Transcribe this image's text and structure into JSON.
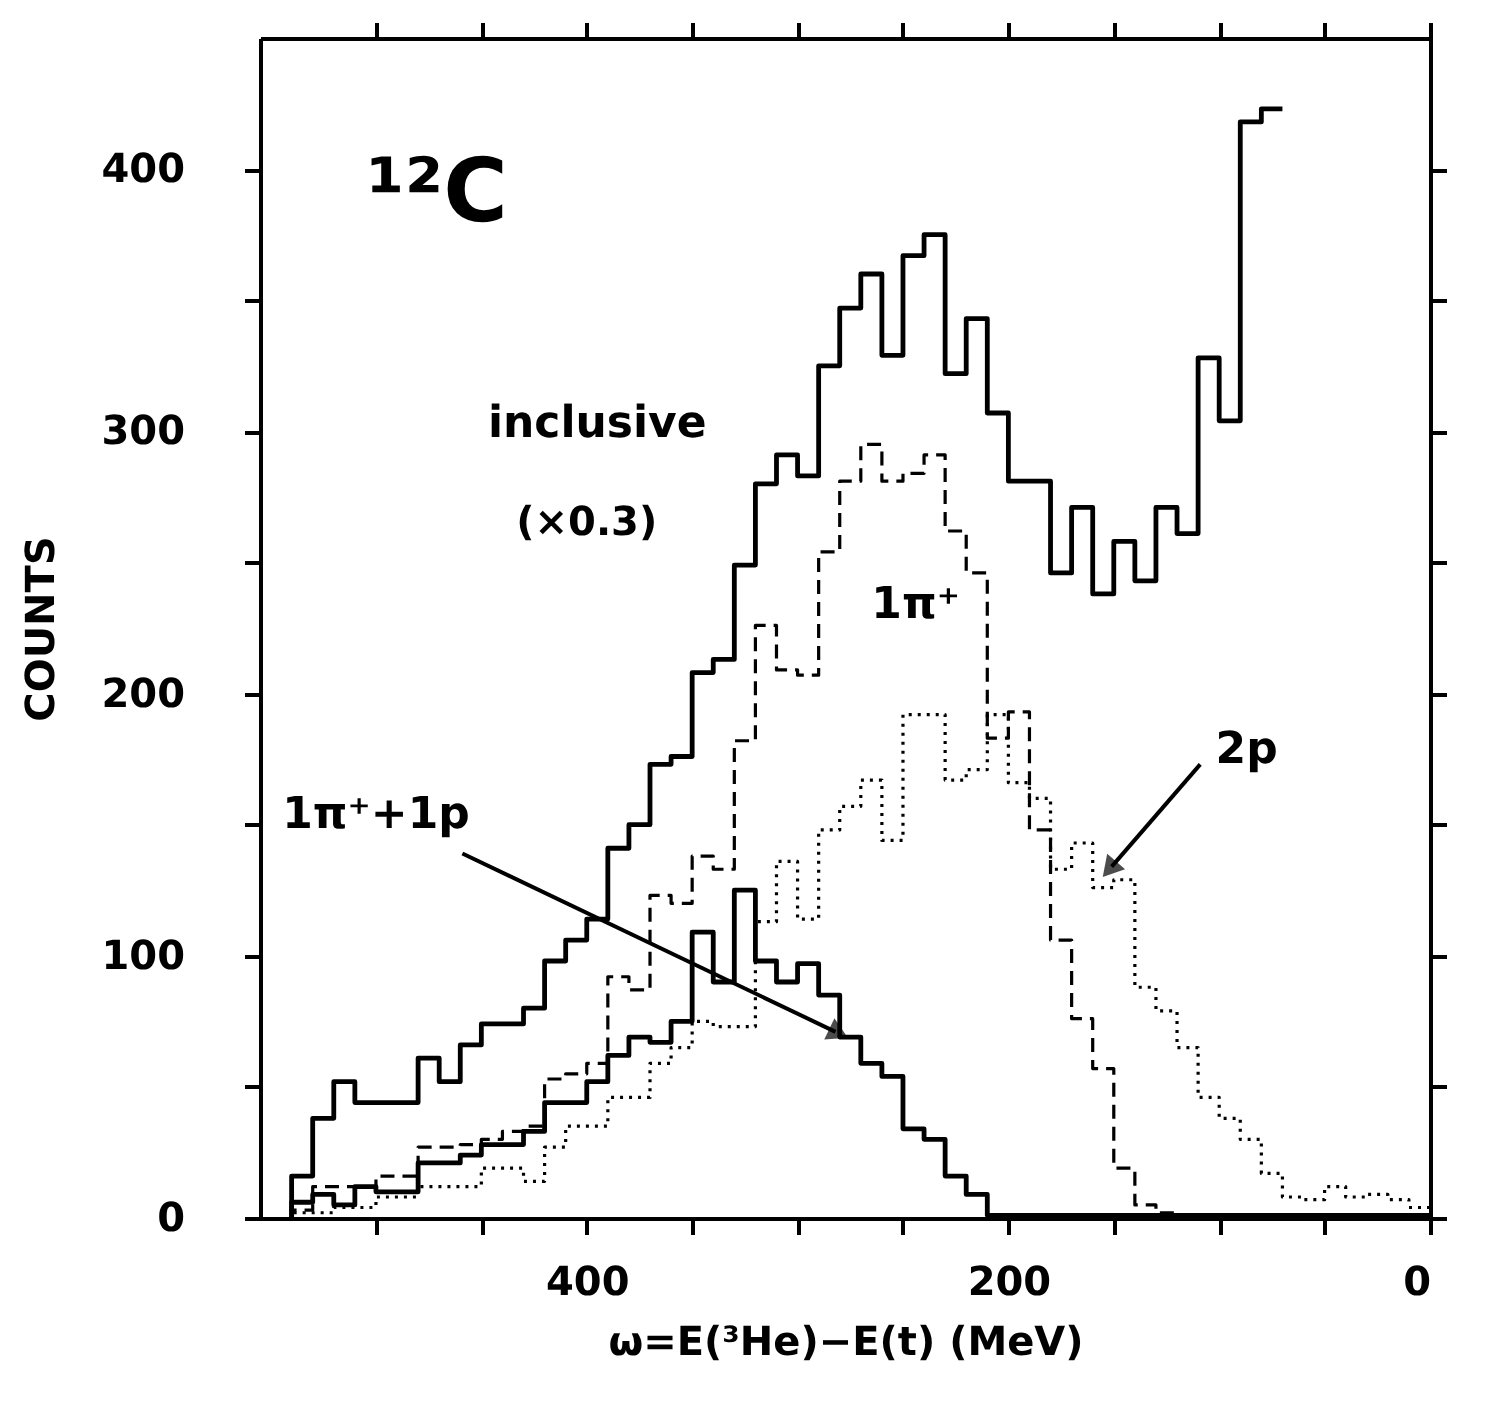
{
  "chart_data": {
    "type": "step",
    "xlabel": "ω=E(³He)−E(t) (MeV)",
    "ylabel": "COUNTS",
    "annotations": [
      "¹²C",
      "(×0.3)"
    ],
    "x": [
      0,
      10,
      20,
      30,
      40,
      50,
      60,
      70,
      80,
      90,
      100,
      110,
      120,
      130,
      140,
      150,
      160,
      170,
      180,
      190,
      200,
      210,
      220,
      230,
      240,
      250,
      260,
      270,
      280,
      290,
      300,
      310,
      320,
      330,
      340,
      350,
      360,
      370,
      380,
      390,
      400,
      410,
      420,
      430,
      440,
      450,
      460,
      470,
      480,
      490,
      500,
      510,
      520,
      530,
      540
    ],
    "series": [
      {
        "name": "inclusive",
        "color": "#000000",
        "line_style": "solid",
        "values": [
          null,
          null,
          null,
          null,
          null,
          null,
          null,
          423,
          418,
          304,
          328,
          261,
          271,
          243,
          258,
          238,
          271,
          246,
          281,
          281,
          307,
          343,
          322,
          375,
          367,
          329,
          360,
          347,
          325,
          283,
          291,
          280,
          249,
          213,
          208,
          176,
          173,
          150,
          141,
          114,
          106,
          98,
          80,
          74,
          74,
          66,
          52,
          61,
          44,
          44,
          44,
          52,
          38,
          16,
          0
        ]
      },
      {
        "name": "1π⁺",
        "color": "#000000",
        "line_style": "dashed",
        "values": [
          1,
          1,
          1,
          1,
          1,
          1,
          1,
          0,
          1,
          1,
          1,
          1,
          2,
          5,
          19,
          57,
          76,
          106,
          148,
          193,
          183,
          246,
          262,
          291,
          284,
          281,
          295,
          281,
          254,
          207,
          209,
          226,
          182,
          133,
          138,
          120,
          123,
          87,
          92,
          59,
          55,
          53,
          35,
          33,
          30,
          28,
          27,
          27,
          16,
          16,
          12,
          12,
          12,
          3,
          0
        ]
      },
      {
        "name": "2p",
        "color": "#000000",
        "line_style": "dotted",
        "values": [
          4,
          7,
          9,
          8,
          12,
          7,
          8,
          17,
          30,
          38,
          46,
          65,
          79,
          88,
          129,
          126,
          143,
          133,
          160,
          166,
          192,
          171,
          167,
          192,
          192,
          144,
          167,
          157,
          148,
          114,
          136,
          113,
          73,
          73,
          75,
          65,
          59,
          46,
          46,
          35,
          35,
          27,
          14,
          19,
          19,
          12,
          12,
          12,
          8,
          8,
          4,
          4,
          2,
          2,
          0
        ]
      },
      {
        "name": "1π⁺+1p",
        "color": "#000000",
        "line_style": "solid",
        "values": [
          1,
          1,
          1,
          1,
          1,
          1,
          1,
          1,
          1,
          1,
          1,
          1,
          1,
          1,
          1,
          1,
          1,
          1,
          1,
          1,
          1,
          9,
          16,
          30,
          34,
          54,
          59,
          69,
          85,
          97,
          90,
          98,
          125,
          90,
          109,
          75,
          67,
          69,
          62,
          52,
          44,
          44,
          33,
          28,
          28,
          24,
          21,
          21,
          10,
          10,
          12,
          5,
          9,
          6,
          0
        ]
      }
    ],
    "xlim": [
      555,
      0
    ],
    "ylim": [
      0,
      450
    ],
    "xticks": [
      {
        "value": 500,
        "label": null
      },
      {
        "value": 450,
        "label": null
      },
      400,
      {
        "value": 350,
        "label": null
      },
      {
        "value": 300,
        "label": null
      },
      {
        "value": 250,
        "label": null
      },
      200,
      {
        "value": 150,
        "label": null
      },
      {
        "value": 100,
        "label": null
      },
      {
        "value": 50,
        "label": null
      },
      0
    ],
    "yticks": [
      0,
      {
        "value": 50,
        "label": null
      },
      100,
      {
        "value": 150,
        "label": null
      },
      200,
      {
        "value": 250,
        "label": null
      },
      300,
      {
        "value": 350,
        "label": null
      },
      400
    ],
    "grid": false,
    "legend": false
  }
}
